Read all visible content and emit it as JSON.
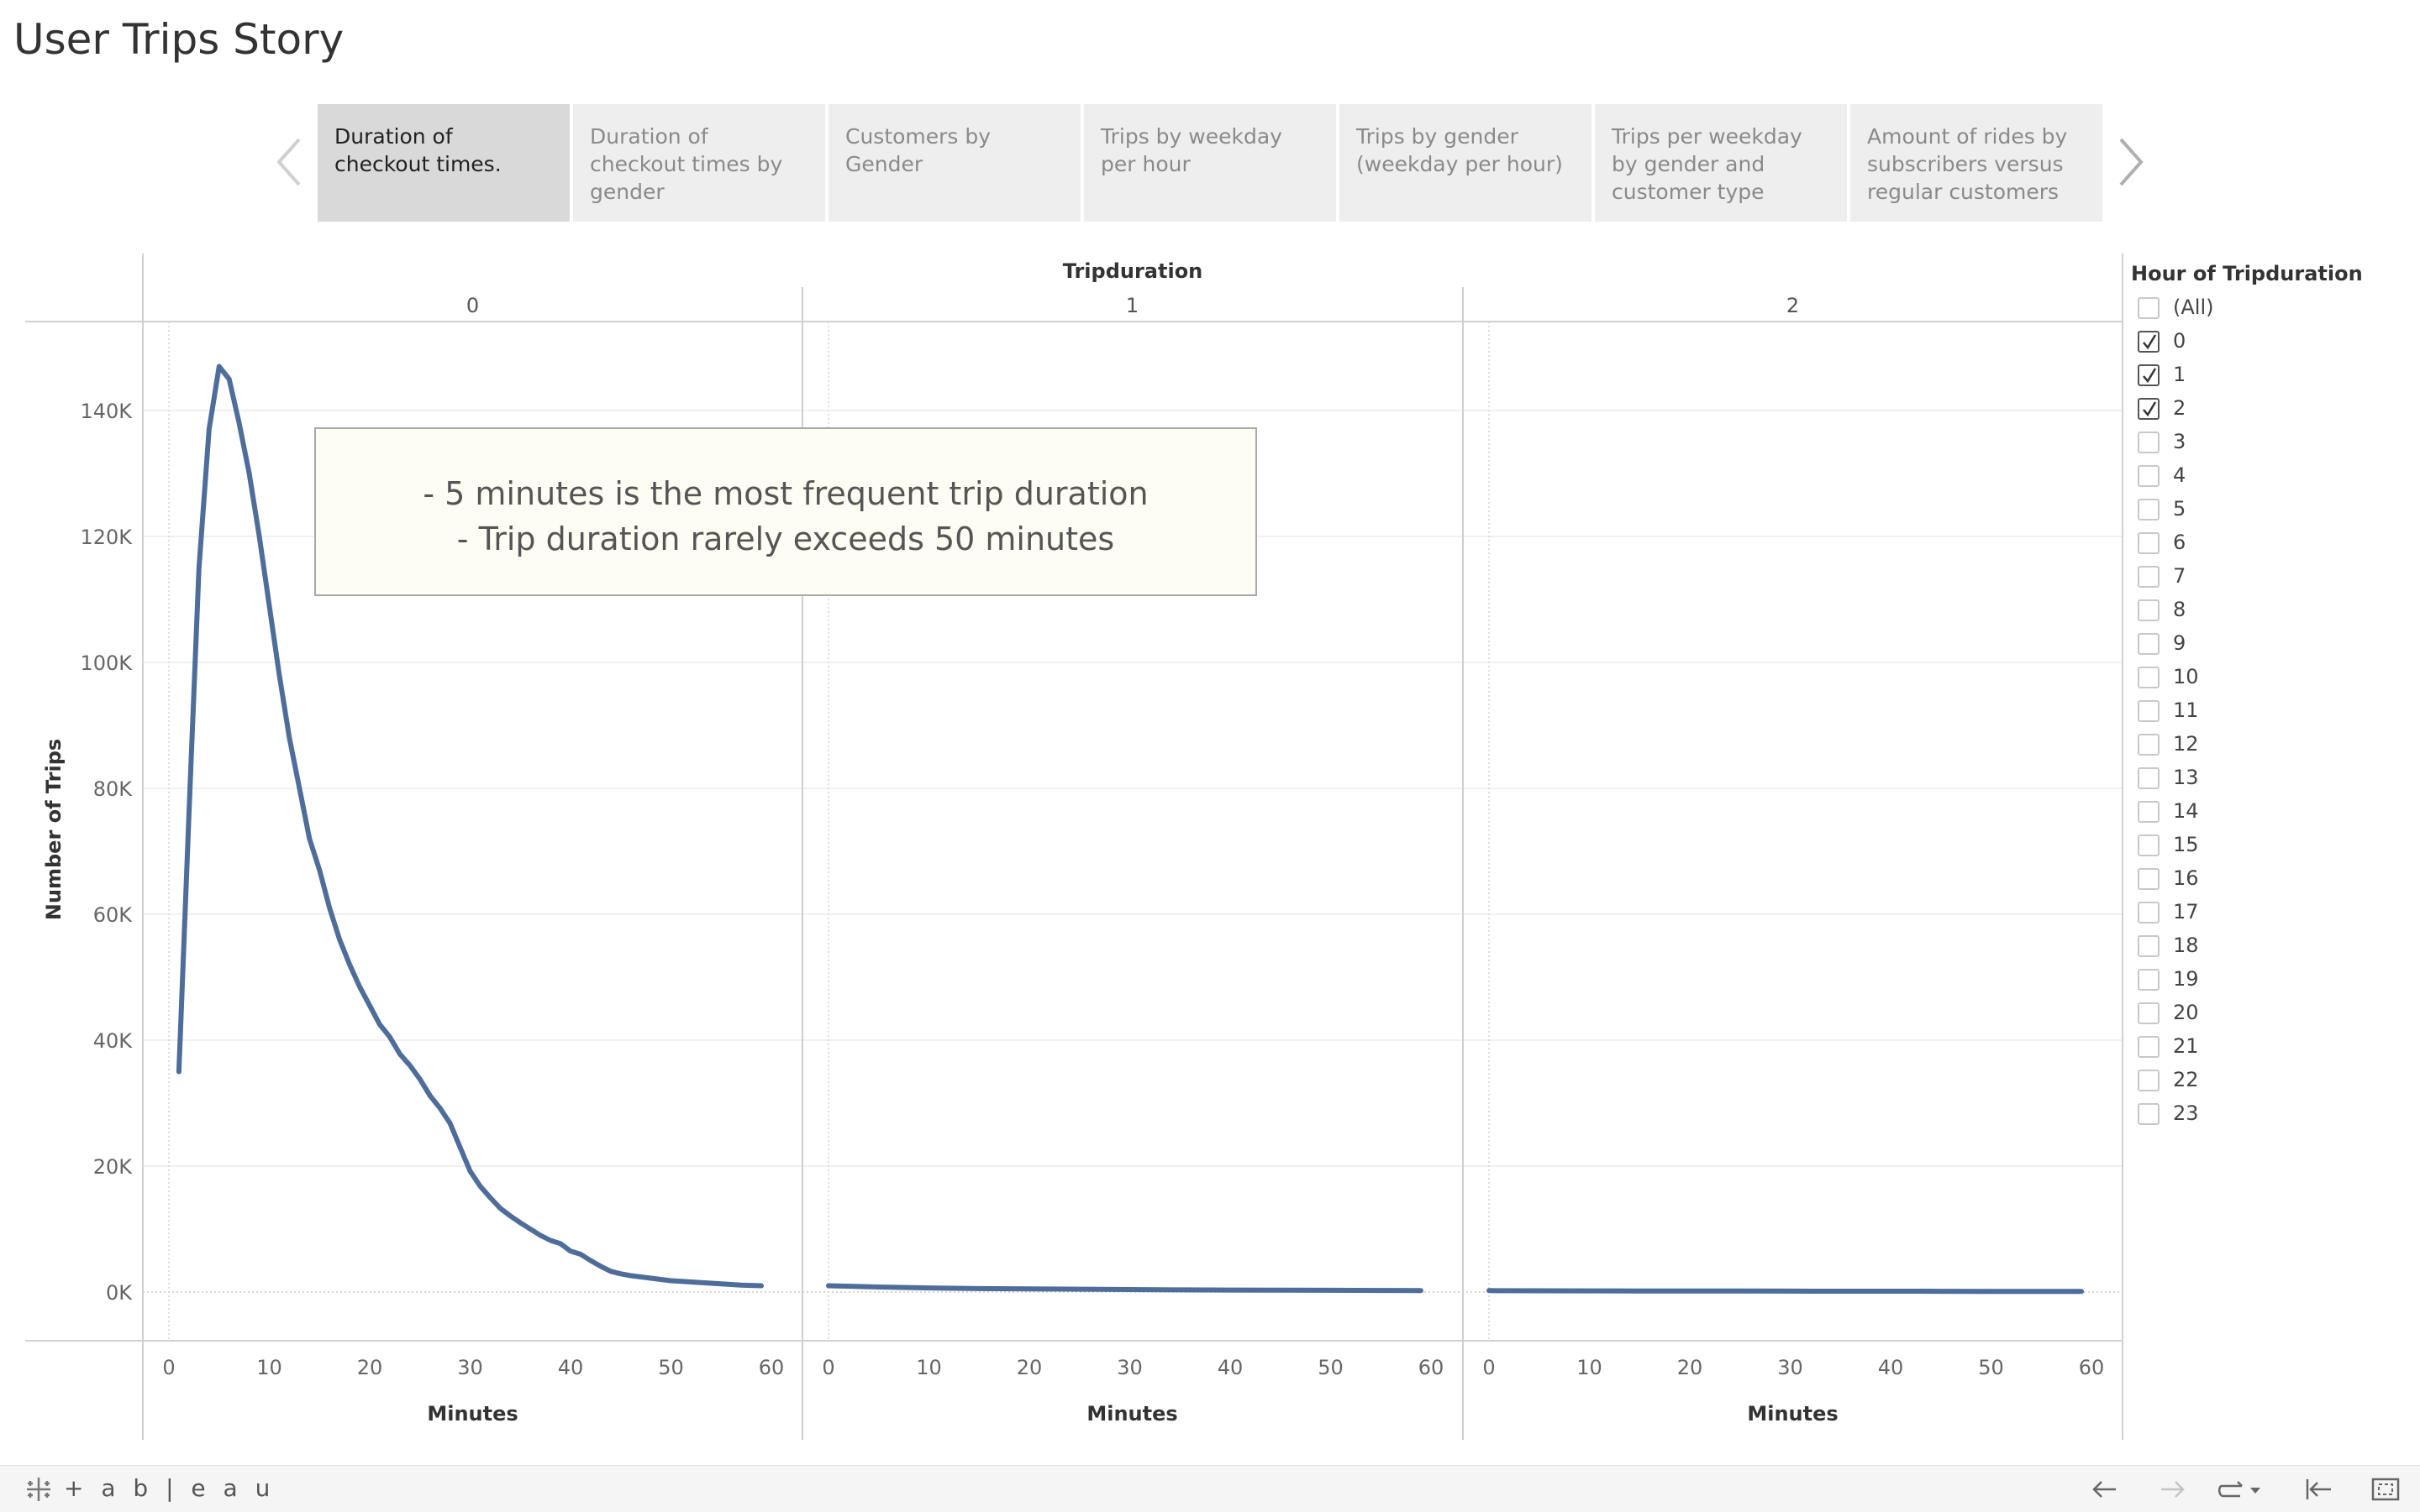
{
  "story": {
    "title": "User Trips Story"
  },
  "story_points": [
    {
      "label": "Duration of checkout times."
    },
    {
      "label": "Duration of checkout times by gender"
    },
    {
      "label": "Customers by Gender"
    },
    {
      "label": "Trips by weekday per hour"
    },
    {
      "label": "Trips by gender (weekday per hour)"
    },
    {
      "label": "Trips per weekday by gender and customer type"
    },
    {
      "label": "Amount of rides by subscribers versus regular customers"
    }
  ],
  "nav": {
    "prev_icon": "chevron-left-icon",
    "next_icon": "chevron-right-icon"
  },
  "annotation": {
    "line1": "- 5 minutes is the most frequent trip duration",
    "line2": "- Trip duration rarely exceeds 50 minutes"
  },
  "filter": {
    "title": "Hour of Tripduration",
    "items": [
      {
        "label": "(All)",
        "checked": false
      },
      {
        "label": "0",
        "checked": true
      },
      {
        "label": "1",
        "checked": true
      },
      {
        "label": "2",
        "checked": true
      },
      {
        "label": "3",
        "checked": false
      },
      {
        "label": "4",
        "checked": false
      },
      {
        "label": "5",
        "checked": false
      },
      {
        "label": "6",
        "checked": false
      },
      {
        "label": "7",
        "checked": false
      },
      {
        "label": "8",
        "checked": false
      },
      {
        "label": "9",
        "checked": false
      },
      {
        "label": "10",
        "checked": false
      },
      {
        "label": "11",
        "checked": false
      },
      {
        "label": "12",
        "checked": false
      },
      {
        "label": "13",
        "checked": false
      },
      {
        "label": "14",
        "checked": false
      },
      {
        "label": "15",
        "checked": false
      },
      {
        "label": "16",
        "checked": false
      },
      {
        "label": "17",
        "checked": false
      },
      {
        "label": "18",
        "checked": false
      },
      {
        "label": "19",
        "checked": false
      },
      {
        "label": "20",
        "checked": false
      },
      {
        "label": "21",
        "checked": false
      },
      {
        "label": "22",
        "checked": false
      },
      {
        "label": "23",
        "checked": false
      }
    ]
  },
  "toolbar": {
    "brand": "+ a b | e a u"
  },
  "chart_data": {
    "type": "line",
    "column_header": "Tripduration",
    "ylabel": "Number of Trips",
    "xlabel": "Minutes",
    "ylim": [
      0,
      150000
    ],
    "yticks": [
      0,
      20000,
      40000,
      60000,
      80000,
      100000,
      120000,
      140000
    ],
    "ytick_labels": [
      "0K",
      "20K",
      "40K",
      "60K",
      "80K",
      "100K",
      "120K",
      "140K"
    ],
    "xlim": [
      -3,
      60
    ],
    "xticks": [
      0,
      10,
      20,
      30,
      40,
      50,
      60
    ],
    "line_color": "#4e6d9a",
    "panels": [
      {
        "name": "0",
        "x": [
          1,
          2,
          3,
          4,
          5,
          6,
          7,
          8,
          9,
          10,
          11,
          12,
          13,
          14,
          15,
          16,
          17,
          18,
          19,
          20,
          21,
          22,
          23,
          24,
          25,
          26,
          27,
          28,
          29,
          30,
          31,
          32,
          33,
          34,
          35,
          36,
          37,
          38,
          39,
          40,
          41,
          42,
          43,
          44,
          45,
          46,
          47,
          48,
          49,
          50,
          51,
          52,
          53,
          54,
          55,
          56,
          57,
          58,
          59
        ],
        "y": [
          35000,
          76000,
          115000,
          137000,
          147000,
          145000,
          138000,
          130000,
          120000,
          109000,
          98000,
          88000,
          80000,
          72000,
          67000,
          61000,
          56000,
          52000,
          48500,
          45500,
          42500,
          40500,
          37800,
          36000,
          33800,
          31200,
          29200,
          26800,
          23000,
          19200,
          16800,
          15000,
          13300,
          12100,
          11000,
          10000,
          9000,
          8200,
          7700,
          6500,
          6000,
          5000,
          4100,
          3300,
          2900,
          2600,
          2400,
          2200,
          2000,
          1800,
          1700,
          1600,
          1500,
          1400,
          1300,
          1200,
          1100,
          1050,
          1000
        ]
      },
      {
        "name": "1",
        "x": [
          0,
          5,
          10,
          15,
          20,
          25,
          30,
          35,
          40,
          45,
          50,
          55,
          59
        ],
        "y": [
          1000,
          800,
          650,
          550,
          500,
          450,
          400,
          350,
          320,
          300,
          280,
          250,
          230
        ]
      },
      {
        "name": "2",
        "x": [
          0,
          5,
          10,
          15,
          20,
          25,
          30,
          35,
          40,
          45,
          50,
          55,
          59
        ],
        "y": [
          220,
          200,
          190,
          180,
          170,
          160,
          150,
          140,
          130,
          120,
          110,
          100,
          90
        ]
      }
    ]
  }
}
